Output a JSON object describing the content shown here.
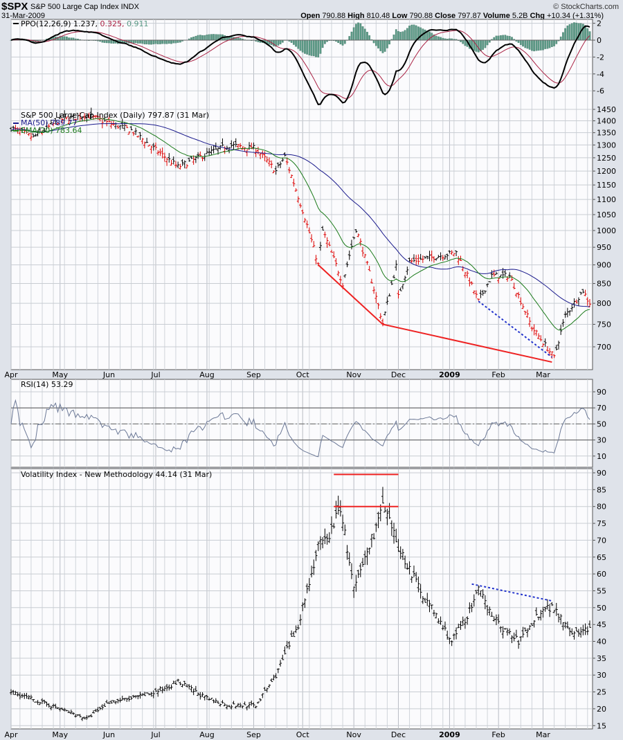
{
  "header": {
    "symbol": "$SPX",
    "name": "S&P 500 Large Cap Index INDX",
    "date": "31-Mar-2009",
    "brand": "© StockCharts.com",
    "open_label": "Open",
    "open": "790.88",
    "high_label": "High",
    "high": "810.48",
    "low_label": "Low",
    "low": "790.88",
    "close_label": "Close",
    "close": "797.87",
    "volume_label": "Volume",
    "volume": "5.2B",
    "chg_label": "Chg",
    "chg": "+10.34 (+1.31%)"
  },
  "colors": {
    "up": "#000000",
    "down": "#dd0000",
    "ma50": "#1a1a8c",
    "ema20": "#1a7a1a",
    "ppo": "#000000",
    "signal": "#aa2244",
    "histogram": "#5b9a86",
    "rsi": "#6b7896",
    "trend_red": "#ee2222",
    "trend_blue": "#2233cc"
  },
  "months": [
    "Apr",
    "May",
    "Jun",
    "Jul",
    "Aug",
    "Sep",
    "Oct",
    "Nov",
    "Dec",
    "2009",
    "Feb",
    "Mar"
  ],
  "chart_data": [
    {
      "type": "line",
      "panel": "ppo",
      "legend": {
        "label": "PPO(12,26,9)",
        "ppo": "1.237",
        "signal": "0.325",
        "histogram": "0.911"
      },
      "yticks": [
        "2",
        "0",
        "-2",
        "-4",
        "-6"
      ],
      "ylim": [
        -7,
        2.5
      ],
      "grid": true
    },
    {
      "type": "ohlc",
      "panel": "price",
      "title": "S&P 500 Large Cap Index (Daily) 797.87 (31 Mar)",
      "legend": [
        {
          "name": "MA(50)",
          "value": "789.77"
        },
        {
          "name": "EMA(20)",
          "value": "783.64"
        }
      ],
      "scale": "log",
      "ylim": [
        650,
        1450
      ],
      "yticks": [
        "1450",
        "1400",
        "1350",
        "1300",
        "1250",
        "1200",
        "1150",
        "1100",
        "1050",
        "1000",
        "950",
        "900",
        "850",
        "800",
        "750",
        "700"
      ],
      "grid": true,
      "close_keypoints": [
        [
          "2008-04-01",
          1370
        ],
        [
          "2008-04-15",
          1330
        ],
        [
          "2008-05-01",
          1405
        ],
        [
          "2008-05-19",
          1425
        ],
        [
          "2008-06-02",
          1390
        ],
        [
          "2008-06-16",
          1360
        ],
        [
          "2008-07-01",
          1280
        ],
        [
          "2008-07-15",
          1215
        ],
        [
          "2008-08-01",
          1265
        ],
        [
          "2008-08-15",
          1300
        ],
        [
          "2008-09-02",
          1285
        ],
        [
          "2008-09-15",
          1200
        ],
        [
          "2008-09-19",
          1255
        ],
        [
          "2008-09-29",
          1110
        ],
        [
          "2008-10-10",
          900
        ],
        [
          "2008-10-14",
          1000
        ],
        [
          "2008-10-27",
          850
        ],
        [
          "2008-11-04",
          1005
        ],
        [
          "2008-11-20",
          752
        ],
        [
          "2008-11-28",
          896
        ],
        [
          "2008-12-01",
          816
        ],
        [
          "2008-12-08",
          909
        ],
        [
          "2009-01-06",
          935
        ],
        [
          "2009-01-20",
          805
        ],
        [
          "2009-01-28",
          870
        ],
        [
          "2009-02-09",
          870
        ],
        [
          "2009-02-23",
          743
        ],
        [
          "2009-03-09",
          677
        ],
        [
          "2009-03-16",
          770
        ],
        [
          "2009-03-26",
          832
        ],
        [
          "2009-03-31",
          797.87
        ]
      ],
      "trendlines": [
        {
          "color": "red",
          "points": [
            [
              "2008-10-10",
              900
            ],
            [
              "2008-11-20",
              750
            ],
            [
              "2009-03-06",
              668
            ]
          ]
        },
        {
          "color": "blue-dotted",
          "points": [
            [
              "2009-01-20",
              805
            ],
            [
              "2009-03-06",
              678
            ]
          ]
        }
      ]
    },
    {
      "type": "line",
      "panel": "rsi",
      "title": "RSI(14) 53.29",
      "ylim": [
        0,
        100
      ],
      "yticks": [
        "90",
        "70",
        "50",
        "30",
        "10"
      ],
      "reference_lines": [
        70,
        50,
        30
      ],
      "grid": true
    },
    {
      "type": "ohlc",
      "panel": "vix",
      "title": "Volatility Index - New Methodology 44.14 (31 Mar)",
      "ylim": [
        15,
        90
      ],
      "yticks": [
        "90",
        "85",
        "80",
        "75",
        "70",
        "65",
        "60",
        "55",
        "50",
        "45",
        "40",
        "35",
        "30",
        "25",
        "20",
        "15"
      ],
      "grid": true,
      "close_keypoints": [
        [
          "2008-04-01",
          25
        ],
        [
          "2008-05-01",
          20
        ],
        [
          "2008-05-19",
          17
        ],
        [
          "2008-06-02",
          22
        ],
        [
          "2008-06-16",
          23
        ],
        [
          "2008-07-01",
          25
        ],
        [
          "2008-07-15",
          28
        ],
        [
          "2008-08-01",
          23
        ],
        [
          "2008-08-15",
          21
        ],
        [
          "2008-09-02",
          21
        ],
        [
          "2008-09-15",
          30
        ],
        [
          "2008-09-29",
          45
        ],
        [
          "2008-10-10",
          68
        ],
        [
          "2008-10-16",
          70
        ],
        [
          "2008-10-24",
          80
        ],
        [
          "2008-11-03",
          55
        ],
        [
          "2008-11-20",
          80
        ],
        [
          "2008-12-01",
          68
        ],
        [
          "2008-12-15",
          55
        ],
        [
          "2009-01-02",
          40
        ],
        [
          "2009-01-15",
          50
        ],
        [
          "2009-01-20",
          55
        ],
        [
          "2009-02-02",
          45
        ],
        [
          "2009-02-13",
          40
        ],
        [
          "2009-03-02",
          50
        ],
        [
          "2009-03-09",
          50
        ],
        [
          "2009-03-20",
          42
        ],
        [
          "2009-03-31",
          44.14
        ]
      ],
      "trendlines": [
        {
          "color": "red",
          "points": [
            [
              "2008-10-21",
              89.5
            ],
            [
              "2008-12-01",
              89.5
            ]
          ]
        },
        {
          "color": "red",
          "points": [
            [
              "2008-10-21",
              80
            ],
            [
              "2008-12-01",
              80
            ]
          ]
        },
        {
          "color": "blue-dotted",
          "points": [
            [
              "2009-01-15",
              57
            ],
            [
              "2009-03-06",
              52
            ]
          ]
        }
      ]
    }
  ]
}
